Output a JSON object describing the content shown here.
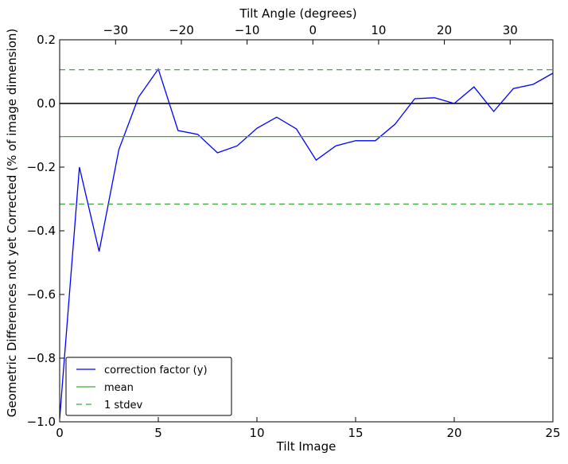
{
  "chart_data": {
    "type": "line",
    "xlabel": "Tilt Image",
    "ylabel": "Geometric Differences not yet Corrected (% of image dimension)",
    "top_xlabel": "Tilt Angle (degrees)",
    "xlim": [
      0,
      25
    ],
    "ylim": [
      -1.0,
      0.2
    ],
    "x_ticks": [
      0,
      5,
      10,
      15,
      20,
      25
    ],
    "x_tick_labels": [
      "0",
      "5",
      "10",
      "15",
      "20",
      "25"
    ],
    "y_ticks": [
      -1.0,
      -0.8,
      -0.6,
      -0.4,
      -0.2,
      0.0,
      0.2
    ],
    "y_tick_labels": [
      "−1.0",
      "−0.8",
      "−0.6",
      "−0.4",
      "−0.2",
      "0.0",
      "0.2"
    ],
    "top_x_ticks": [
      -30,
      -20,
      -10,
      0,
      10,
      20,
      30
    ],
    "top_x_tick_labels": [
      "−30",
      "−20",
      "−10",
      "0",
      "10",
      "20",
      "30"
    ],
    "top_xlim": [
      -38.5,
      36.5
    ],
    "grid": false,
    "legend_position": "lower-left",
    "series": [
      {
        "name": "correction factor (y)",
        "color": "#0000ff",
        "style": "solid",
        "x": [
          0,
          1,
          2,
          3,
          4,
          5,
          6,
          7,
          8,
          9,
          10,
          11,
          12,
          13,
          14,
          15,
          16,
          17,
          18,
          19,
          20,
          21,
          22,
          23,
          24,
          25
        ],
        "y": [
          -0.99,
          -0.2,
          -0.465,
          -0.145,
          0.02,
          0.108,
          -0.085,
          -0.097,
          -0.155,
          -0.133,
          -0.078,
          -0.043,
          -0.08,
          -0.178,
          -0.133,
          -0.117,
          -0.117,
          -0.065,
          0.015,
          0.018,
          0.0,
          0.052,
          -0.025,
          0.047,
          0.06,
          0.095
        ]
      },
      {
        "name": "mean",
        "color": "#3aaa3a",
        "style": "solid",
        "x": [
          0,
          25
        ],
        "y": [
          -0.104,
          -0.104
        ]
      },
      {
        "name": "1 stdev",
        "color": "#3aaa3a",
        "style": "dashed",
        "x": [
          0,
          25
        ],
        "y": [
          0.106,
          0.106
        ]
      },
      {
        "name": "",
        "color": "#3aaa3a",
        "style": "dashed",
        "x": [
          0,
          25
        ],
        "y": [
          -0.316,
          -0.316
        ]
      }
    ],
    "reference_lines": [
      {
        "y": 0.0,
        "color": "#000000"
      }
    ],
    "legend": [
      {
        "label": "correction factor (y)",
        "color": "#0000ff",
        "style": "solid"
      },
      {
        "label": "mean",
        "color": "#3aaa3a",
        "style": "solid"
      },
      {
        "label": "1 stdev",
        "color": "#3aaa3a",
        "style": "dashed"
      }
    ]
  }
}
